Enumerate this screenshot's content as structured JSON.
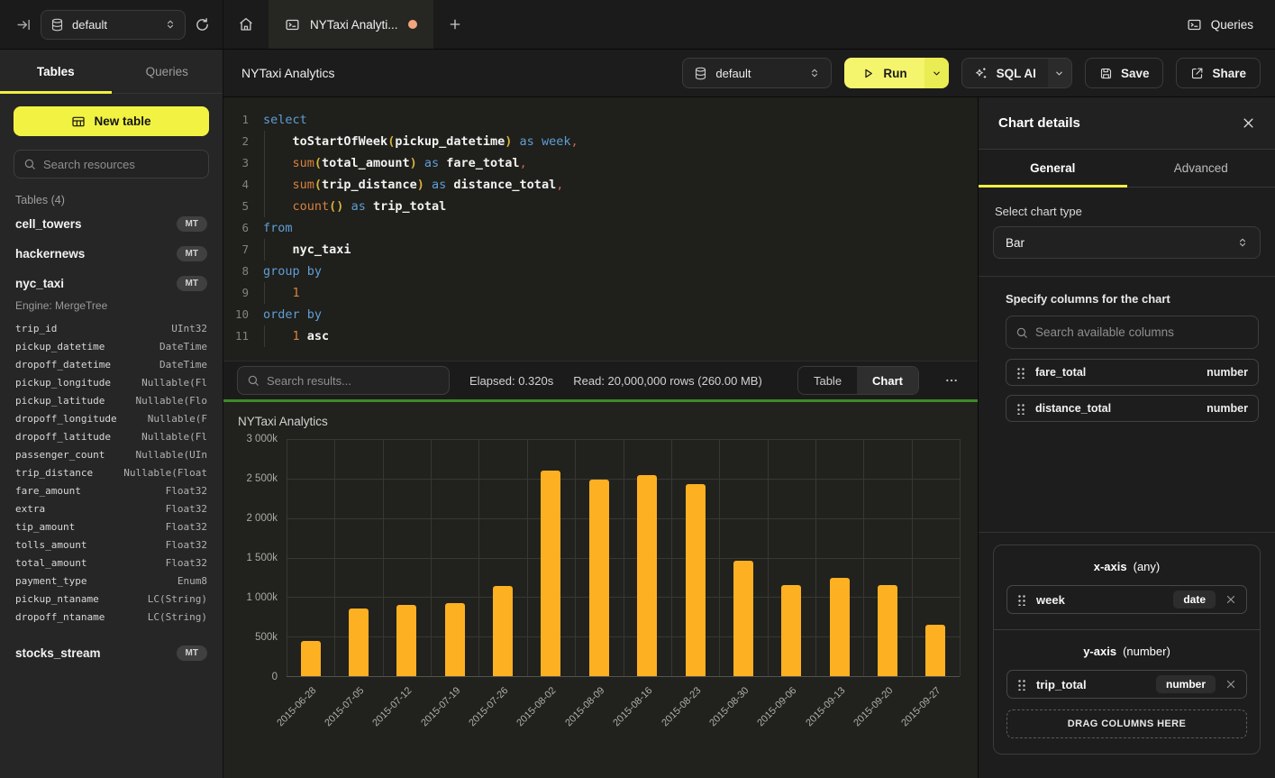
{
  "topbar": {
    "database_selector": "default",
    "tab_title": "NYTaxi Analyti...",
    "queries_label": "Queries"
  },
  "sidebar": {
    "tabs": {
      "tables": "Tables",
      "queries": "Queries"
    },
    "new_table_label": "New table",
    "search_placeholder": "Search resources",
    "section_label": "Tables (4)",
    "tables": [
      {
        "name": "cell_towers",
        "badge": "MT"
      },
      {
        "name": "hackernews",
        "badge": "MT"
      },
      {
        "name": "nyc_taxi",
        "badge": "MT",
        "engine": "Engine: MergeTree"
      },
      {
        "name": "stocks_stream",
        "badge": "MT"
      }
    ],
    "nyc_taxi_columns": [
      {
        "name": "trip_id",
        "type": "UInt32"
      },
      {
        "name": "pickup_datetime",
        "type": "DateTime"
      },
      {
        "name": "dropoff_datetime",
        "type": "DateTime"
      },
      {
        "name": "pickup_longitude",
        "type": "Nullable(Fl"
      },
      {
        "name": "pickup_latitude",
        "type": "Nullable(Flo"
      },
      {
        "name": "dropoff_longitude",
        "type": "Nullable(F"
      },
      {
        "name": "dropoff_latitude",
        "type": "Nullable(Fl"
      },
      {
        "name": "passenger_count",
        "type": "Nullable(UIn"
      },
      {
        "name": "trip_distance",
        "type": "Nullable(Float"
      },
      {
        "name": "fare_amount",
        "type": "Float32"
      },
      {
        "name": "extra",
        "type": "Float32"
      },
      {
        "name": "tip_amount",
        "type": "Float32"
      },
      {
        "name": "tolls_amount",
        "type": "Float32"
      },
      {
        "name": "total_amount",
        "type": "Float32"
      },
      {
        "name": "payment_type",
        "type": "Enum8"
      },
      {
        "name": "pickup_ntaname",
        "type": "LC(String)"
      },
      {
        "name": "dropoff_ntaname",
        "type": "LC(String)"
      }
    ]
  },
  "query_header": {
    "title": "NYTaxi Analytics",
    "database": "default",
    "run_label": "Run",
    "sql_ai_label": "SQL AI",
    "save_label": "Save",
    "share_label": "Share"
  },
  "sql": {
    "lines": [
      {
        "ind": false,
        "tokens": [
          [
            "kw",
            "select"
          ]
        ]
      },
      {
        "ind": true,
        "tokens": [
          [
            "pl",
            "    "
          ],
          [
            "id",
            "toStartOfWeek"
          ],
          [
            "par",
            "("
          ],
          [
            "id",
            "pickup_datetime"
          ],
          [
            "par",
            ")"
          ],
          [
            "pl",
            " "
          ],
          [
            "kw",
            "as"
          ],
          [
            "pl",
            " "
          ],
          [
            "kw",
            "week"
          ],
          [
            "pun",
            ","
          ]
        ]
      },
      {
        "ind": true,
        "tokens": [
          [
            "pl",
            "    "
          ],
          [
            "fn",
            "sum"
          ],
          [
            "par",
            "("
          ],
          [
            "id",
            "total_amount"
          ],
          [
            "par",
            ")"
          ],
          [
            "pl",
            " "
          ],
          [
            "kw",
            "as"
          ],
          [
            "pl",
            " "
          ],
          [
            "id",
            "fare_total"
          ],
          [
            "pun",
            ","
          ]
        ]
      },
      {
        "ind": true,
        "tokens": [
          [
            "pl",
            "    "
          ],
          [
            "fn",
            "sum"
          ],
          [
            "par",
            "("
          ],
          [
            "id",
            "trip_distance"
          ],
          [
            "par",
            ")"
          ],
          [
            "pl",
            " "
          ],
          [
            "kw",
            "as"
          ],
          [
            "pl",
            " "
          ],
          [
            "id",
            "distance_total"
          ],
          [
            "pun",
            ","
          ]
        ]
      },
      {
        "ind": true,
        "tokens": [
          [
            "pl",
            "    "
          ],
          [
            "fn",
            "count"
          ],
          [
            "par",
            "()"
          ],
          [
            "pl",
            " "
          ],
          [
            "kw",
            "as"
          ],
          [
            "pl",
            " "
          ],
          [
            "id",
            "trip_total"
          ]
        ]
      },
      {
        "ind": false,
        "tokens": [
          [
            "kw",
            "from"
          ]
        ]
      },
      {
        "ind": true,
        "tokens": [
          [
            "pl",
            "    "
          ],
          [
            "id",
            "nyc_taxi"
          ]
        ]
      },
      {
        "ind": false,
        "tokens": [
          [
            "kw",
            "group by"
          ]
        ]
      },
      {
        "ind": true,
        "tokens": [
          [
            "pl",
            "    "
          ],
          [
            "num",
            "1"
          ]
        ]
      },
      {
        "ind": false,
        "tokens": [
          [
            "kw",
            "order by"
          ]
        ]
      },
      {
        "ind": true,
        "tokens": [
          [
            "pl",
            "    "
          ],
          [
            "num",
            "1"
          ],
          [
            "pl",
            " "
          ],
          [
            "id",
            "asc"
          ]
        ]
      }
    ]
  },
  "results_bar": {
    "search_placeholder": "Search results...",
    "elapsed": "Elapsed: 0.320s",
    "read": "Read: 20,000,000 rows (260.00 MB)",
    "table_label": "Table",
    "chart_label": "Chart",
    "active_view": "Chart"
  },
  "chart_data": {
    "type": "bar",
    "title": "NYTaxi Analytics",
    "categories": [
      "2015-06-28",
      "2015-07-05",
      "2015-07-12",
      "2015-07-19",
      "2015-07-26",
      "2015-08-02",
      "2015-08-09",
      "2015-08-16",
      "2015-08-23",
      "2015-08-30",
      "2015-09-06",
      "2015-09-13",
      "2015-09-20",
      "2015-09-27"
    ],
    "series": [
      {
        "name": "trip_total",
        "values": [
          450000,
          858000,
          905000,
          920000,
          1140000,
          2600000,
          2485000,
          2545000,
          2430000,
          1455000,
          1150000,
          1248000,
          1150000,
          650000
        ]
      }
    ],
    "xlabel": "week",
    "ylabel": "trip_total",
    "ylim": [
      0,
      3000000
    ],
    "y_ticks": [
      "3 000k",
      "2 500k",
      "2 000k",
      "1 500k",
      "1 000k",
      "500k",
      "0"
    ],
    "grid": true,
    "legend_position": "none",
    "bar_color": "#fdb022"
  },
  "chart_panel": {
    "title": "Chart details",
    "tabs": {
      "general": "General",
      "advanced": "Advanced"
    },
    "chart_type_label": "Select chart type",
    "chart_type_value": "Bar",
    "columns_label": "Specify columns for the chart",
    "columns_search_placeholder": "Search available columns",
    "available_columns": [
      {
        "name": "fare_total",
        "type": "number"
      },
      {
        "name": "distance_total",
        "type": "number"
      }
    ],
    "x_axis": {
      "label": "x-axis",
      "hint": "(any)",
      "column": {
        "name": "week",
        "type": "date"
      }
    },
    "y_axis": {
      "label": "y-axis",
      "hint": "(number)",
      "column": {
        "name": "trip_total",
        "type": "number"
      },
      "drop_label": "DRAG COLUMNS HERE"
    }
  },
  "colors": {
    "accent_yellow": "#f2f243",
    "run_button": "#f5f46d",
    "bar": "#fdb022",
    "results_divider_green": "#3f8a28",
    "unsaved_dot": "#f2a57c"
  },
  "icons": {
    "collapse-sidebar": "arrow-to-bar",
    "database": "cylinder",
    "refresh": "circular-arrow",
    "home": "house",
    "terminal": "console-box",
    "plus": "+",
    "search": "magnifier",
    "play": "triangle",
    "sparkle": "four-point-star",
    "save": "floppy",
    "share": "box-arrow-out",
    "close": "x",
    "more": "...",
    "drag-handle": "six-dots",
    "chevron-up-down": "updown",
    "chevron-down": "v"
  }
}
